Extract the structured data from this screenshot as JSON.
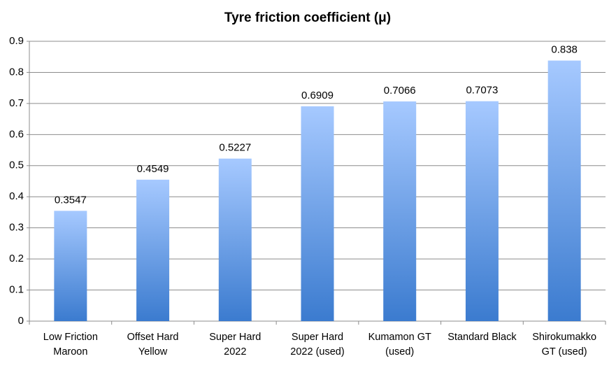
{
  "chart_data": {
    "type": "bar",
    "title": "Tyre friction coefficient (μ)",
    "categories": [
      "Low Friction Maroon",
      "Offset Hard Yellow",
      "Super Hard 2022",
      "Super Hard 2022 (used)",
      "Kumamon GT (used)",
      "Standard Black",
      "Shirokumakko GT (used)"
    ],
    "values": [
      0.3547,
      0.4549,
      0.5227,
      0.6909,
      0.7066,
      0.7073,
      0.838
    ],
    "color": [
      "#a6c9ff",
      "#3b7bcf"
    ],
    "ylim": [
      0,
      0.9
    ],
    "yticks": [
      0,
      0.1,
      0.2,
      0.3,
      0.4,
      0.5,
      0.6,
      0.7,
      0.8,
      0.9
    ],
    "grid": true
  }
}
